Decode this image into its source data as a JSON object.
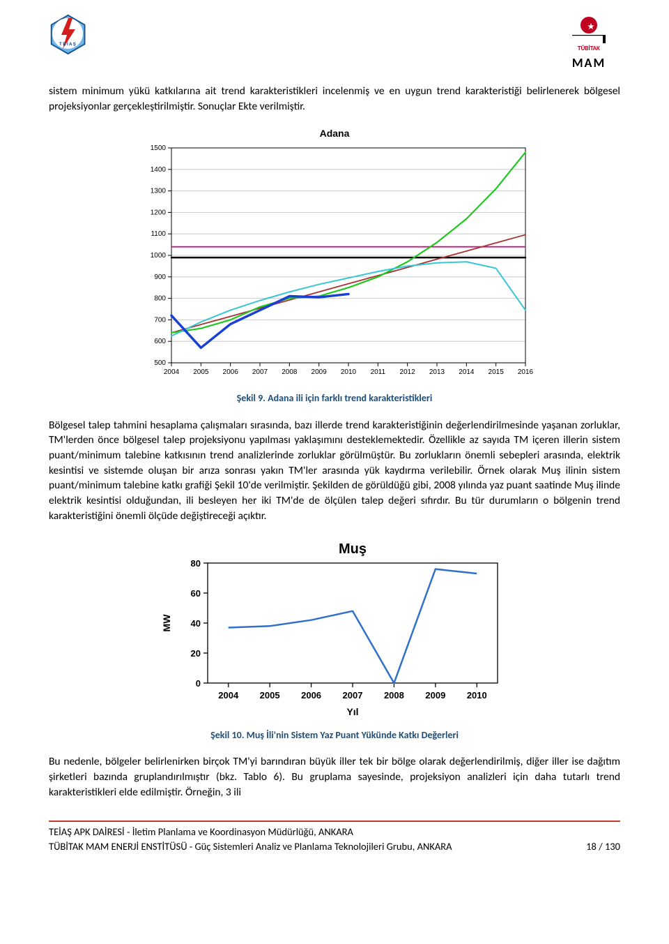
{
  "header": {
    "left_logo_label": "TEİAŞ",
    "right_logo_top": "TÜBİTAK",
    "right_logo_bottom": "MAM"
  },
  "paragraphs": {
    "p1": "sistem minimum yükü katkılarına ait trend karakteristikleri incelenmiş ve en uygun trend karakteristiği belirlenerek bölgesel projeksiyonlar gerçekleştirilmiştir. Sonuçlar Ekte verilmiştir.",
    "caption1": "Şekil 9. Adana ili için farklı trend karakteristikleri",
    "p2": "Bölgesel talep tahmini hesaplama çalışmaları sırasında, bazı illerde trend karakteristiğinin değerlendirilmesinde yaşanan zorluklar, TM'lerden önce bölgesel talep projeksiyonu yapılması yaklaşımını desteklemektedir. Özellikle az sayıda TM içeren illerin sistem puant/minimum talebine katkısının trend analizlerinde zorluklar görülmüştür. Bu zorlukların önemli sebepleri arasında, elektrik kesintisi ve sistemde oluşan bir arıza sonrası yakın TM'ler arasında yük kaydırma verilebilir. Örnek olarak Muş ilinin sistem puant/minimum talebine katkı grafiği Şekil 10'de verilmiştir. Şekilden de görüldüğü gibi, 2008 yılında yaz puant saatinde Muş ilinde elektrik kesintisi olduğundan, ili besleyen her iki TM'de de ölçülen talep değeri sıfırdır. Bu tür durumların o bölgenin trend karakteristiğini önemli ölçüde değiştireceği açıktır.",
    "caption2": "Şekil 10. Muş İli'nin Sistem Yaz Puant Yükünde Katkı Değerleri",
    "p3": "Bu nedenle, bölgeler belirlenirken birçok TM'yi barındıran büyük iller tek bir bölge olarak değerlendirilmiş, diğer iller ise dağıtım şirketleri bazında gruplandırılmıştır (bkz. Tablo 6). Bu gruplama sayesinde, projeksiyon analizleri için daha tutarlı trend karakteristikleri elde edilmiştir. Örneğin, 3 ili"
  },
  "chart_adana": {
    "type": "line",
    "title": "Adana",
    "title_fontsize": 14,
    "title_fontweight": "bold",
    "xlim": [
      2004,
      2016
    ],
    "ylim": [
      500,
      1500
    ],
    "ytick_step": 100,
    "xtick_step": 1,
    "x_categories": [
      2004,
      2005,
      2006,
      2007,
      2008,
      2009,
      2010,
      2011,
      2012,
      2013,
      2014,
      2015,
      2016
    ],
    "y_ticks": [
      500,
      600,
      700,
      800,
      900,
      1000,
      1100,
      1200,
      1300,
      1400,
      1500
    ],
    "background_color": "#ffffff",
    "grid_color": "#bfbfbf",
    "axis_color": "#000000",
    "tick_fontsize": 10,
    "series": [
      {
        "name": "thick_black_constant",
        "color": "#000000",
        "width": 2.5,
        "values": [
          990,
          990,
          990,
          990,
          990,
          990,
          990,
          990,
          990,
          990,
          990,
          990,
          990
        ]
      },
      {
        "name": "magenta_constant",
        "color": "#c71585",
        "width": 1.8,
        "values": [
          1040,
          1040,
          1040,
          1040,
          1040,
          1040,
          1040,
          1040,
          1040,
          1040,
          1040,
          1040,
          1040
        ]
      },
      {
        "name": "dark_red_linear",
        "color": "#a83232",
        "width": 1.8,
        "values": [
          640,
          678,
          716,
          754,
          792,
          830,
          868,
          906,
          944,
          982,
          1020,
          1058,
          1096
        ]
      },
      {
        "name": "green_curve",
        "color": "#1ec81e",
        "width": 2.2,
        "values": [
          640,
          660,
          700,
          760,
          800,
          810,
          850,
          900,
          970,
          1060,
          1170,
          1310,
          1480
        ]
      },
      {
        "name": "cyan_curve",
        "color": "#37c7d4",
        "width": 2.0,
        "values": [
          625,
          690,
          745,
          790,
          830,
          865,
          895,
          925,
          950,
          965,
          970,
          940,
          745
        ]
      },
      {
        "name": "blue_actual",
        "color": "#1a3fd4",
        "width": 3.5,
        "values": [
          720,
          570,
          680,
          745,
          810,
          805,
          820,
          null,
          null,
          null,
          null,
          null,
          null
        ]
      }
    ]
  },
  "chart_mus": {
    "type": "line",
    "title": "Muş",
    "title_fontsize": 20,
    "title_fontweight": "bold",
    "xlabel": "Yıl",
    "ylabel": "MW",
    "label_fontsize": 14,
    "label_fontweight": "bold",
    "xlim": [
      2004,
      2010
    ],
    "ylim": [
      0,
      80
    ],
    "ytick_step": 20,
    "x_categories": [
      2004,
      2005,
      2006,
      2007,
      2008,
      2009,
      2010
    ],
    "y_ticks": [
      0,
      20,
      40,
      60,
      80
    ],
    "background_color": "#ffffff",
    "axis_color": "#000000",
    "tick_fontsize": 13,
    "series": [
      {
        "name": "mus_value",
        "color": "#3070c7",
        "width": 2.5,
        "values": [
          37,
          38,
          42,
          48,
          0,
          76,
          73
        ]
      }
    ]
  },
  "footer": {
    "line1": "TEİAŞ APK DAİRESİ - İletim Planlama ve Koordinasyon Müdürlüğü, ANKARA",
    "line2_left": "TÜBİTAK MAM ENERJİ ENSTİTÜSÜ - Güç Sistemleri Analiz ve Planlama Teknolojileri Grubu, ANKARA",
    "page_no": "18 / 130"
  }
}
